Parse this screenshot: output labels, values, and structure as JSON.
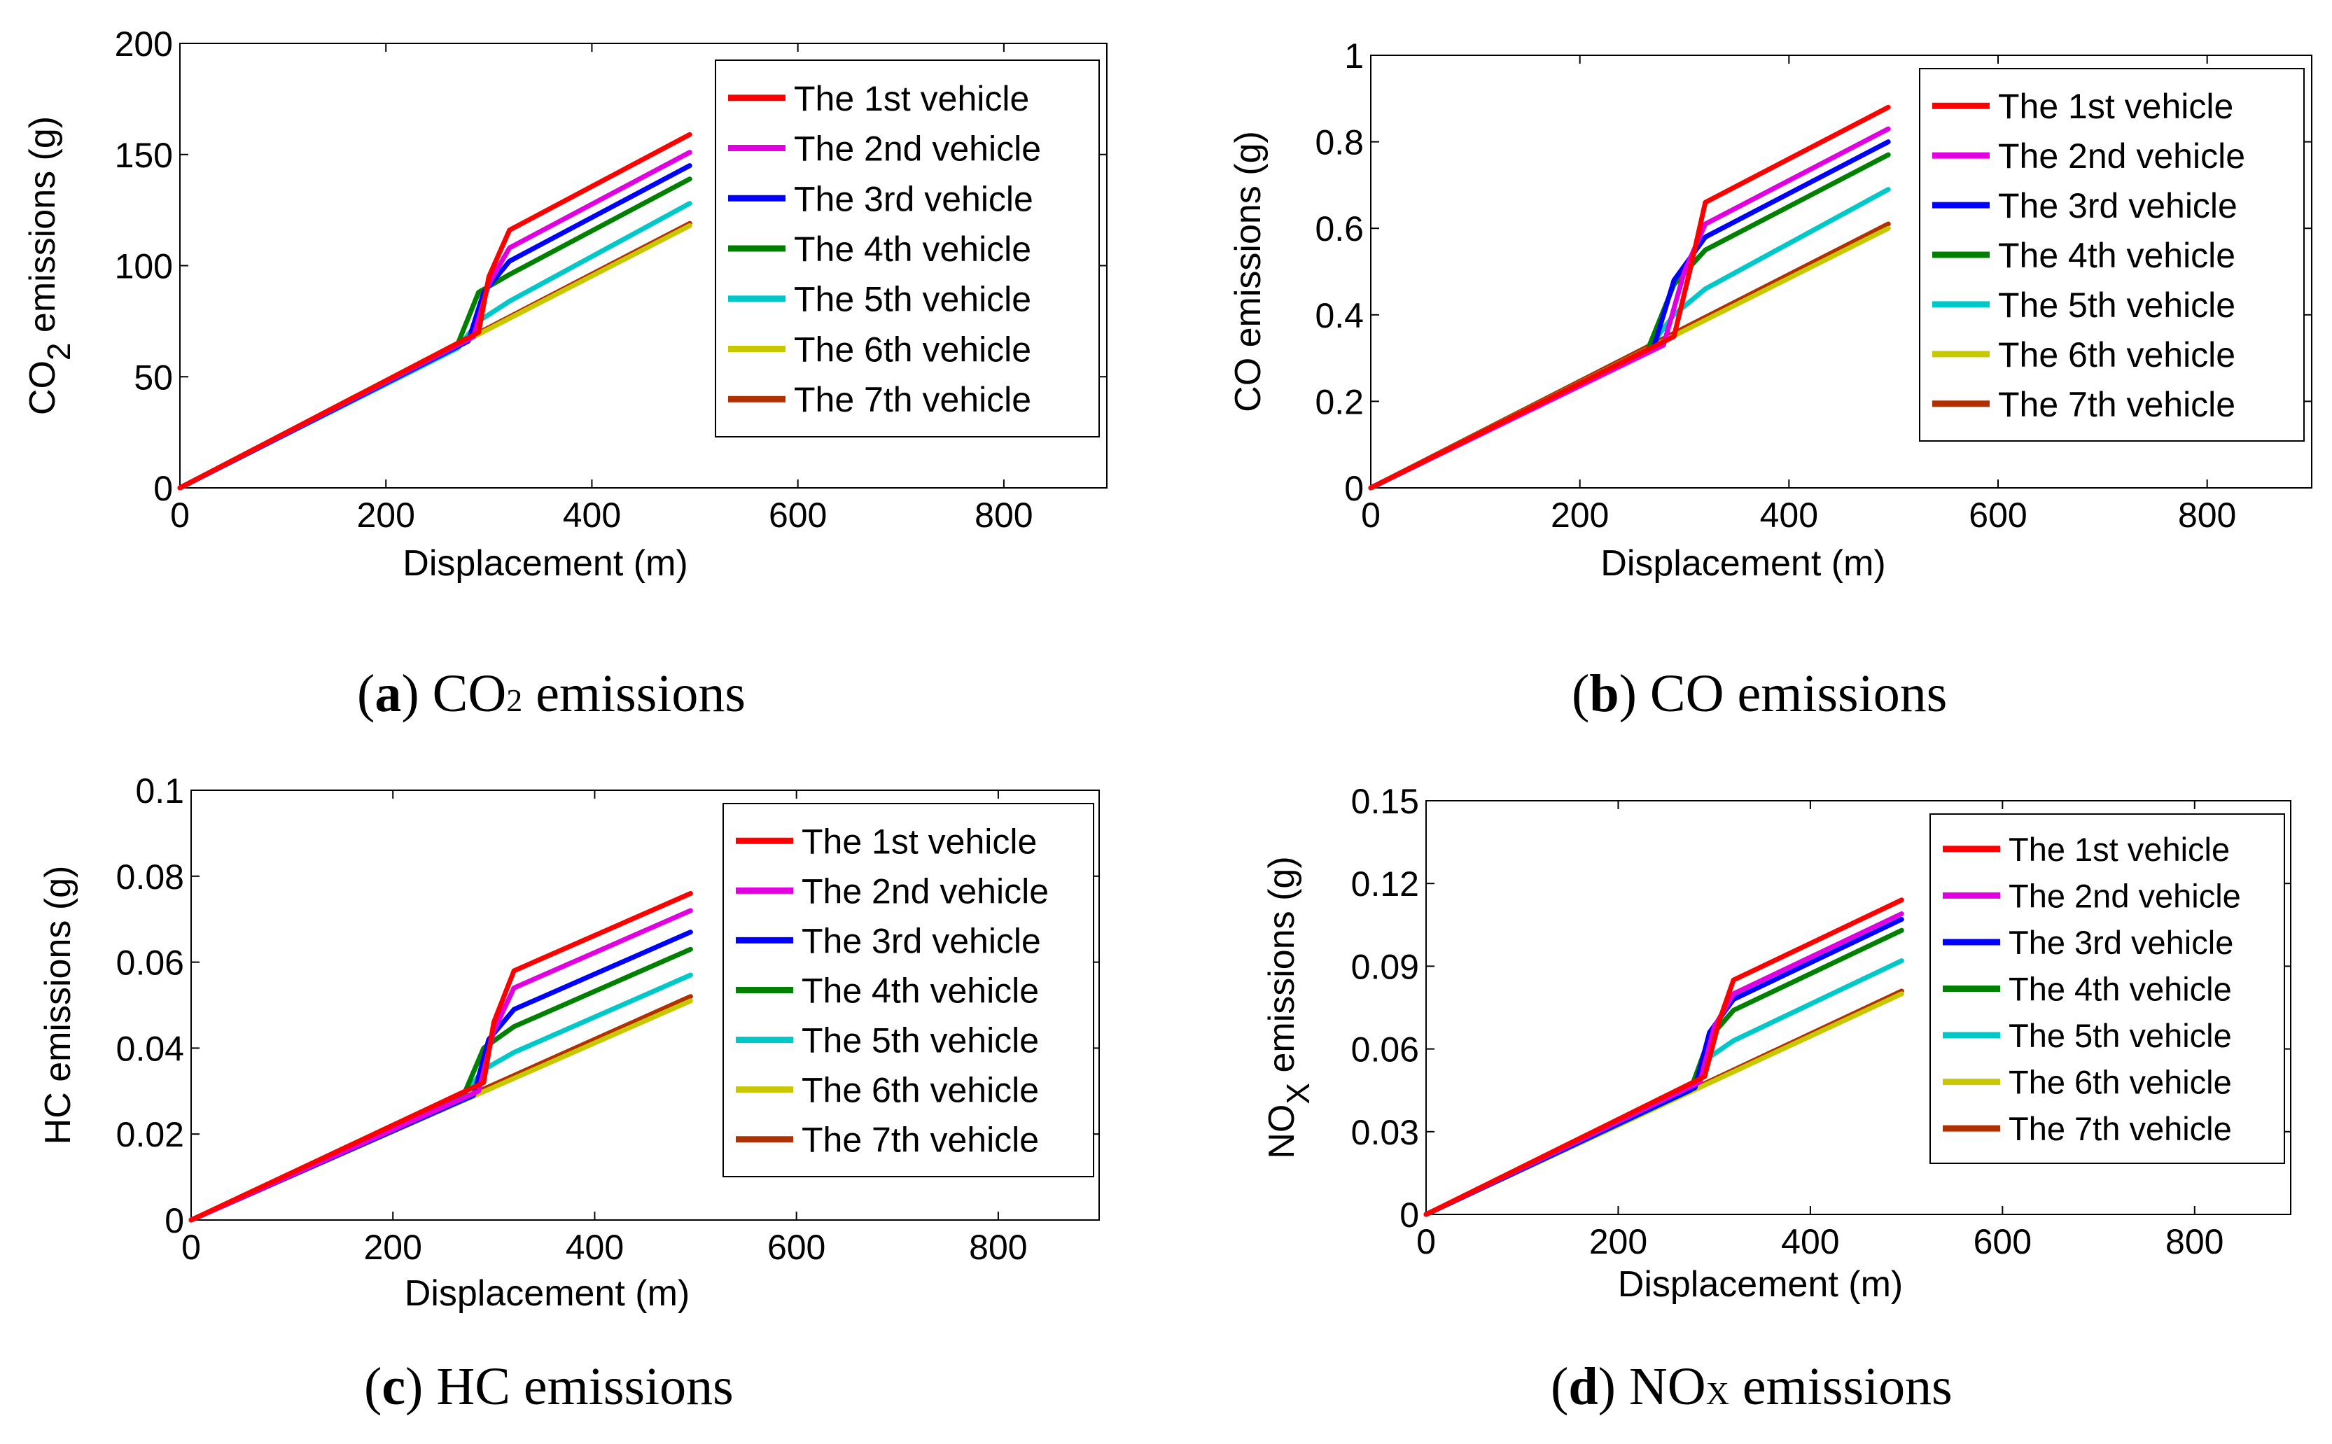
{
  "figure": {
    "captions": [
      {
        "letter": "a",
        "text_main": "CO",
        "text_sub": "2",
        "text_after": " emissions"
      },
      {
        "letter": "b",
        "text_main": "CO emissions",
        "text_sub": "",
        "text_after": ""
      },
      {
        "letter": "c",
        "text_main": "HC emissions",
        "text_sub": "",
        "text_after": ""
      },
      {
        "letter": "d",
        "text_main": "NO",
        "text_sub": "X",
        "text_after": " emissions"
      }
    ]
  },
  "legend_entries": [
    "The 1st vehicle",
    "The 2nd vehicle",
    "The 3rd vehicle",
    "The 4th vehicle",
    "The 5th vehicle",
    "The 6th vehicle",
    "The 7th vehicle"
  ],
  "series_colors": [
    "#ff0000",
    "#e000e0",
    "#0000ff",
    "#008000",
    "#00c8c8",
    "#c8c800",
    "#b03000"
  ],
  "chart_data": [
    {
      "type": "line",
      "title": "",
      "xlabel": "Displacement (m)",
      "ylabel_main": "CO",
      "ylabel_sub": "2",
      "ylabel_after": " emissions (g)",
      "xlim": [
        0,
        900
      ],
      "ylim": [
        0,
        200
      ],
      "xticks": [
        "0",
        "200",
        "400",
        "600",
        "800"
      ],
      "xtick_values": [
        0,
        200,
        400,
        600,
        800
      ],
      "yticks": [
        "0",
        "50",
        "100",
        "150",
        "200"
      ],
      "ytick_values": [
        0,
        50,
        100,
        150,
        200
      ],
      "legend_position": "top-right",
      "series": [
        {
          "name": "The 1st vehicle",
          "points": [
            [
              0,
              0
            ],
            [
              290,
              70
            ],
            [
              300,
              95
            ],
            [
              320,
              116
            ],
            [
              495,
              159
            ]
          ]
        },
        {
          "name": "The 2nd vehicle",
          "points": [
            [
              0,
              0
            ],
            [
              285,
              68
            ],
            [
              300,
              92
            ],
            [
              320,
              108
            ],
            [
              495,
              151
            ]
          ]
        },
        {
          "name": "The 3rd vehicle",
          "points": [
            [
              0,
              0
            ],
            [
              280,
              66
            ],
            [
              295,
              88
            ],
            [
              320,
              102
            ],
            [
              495,
              145
            ]
          ]
        },
        {
          "name": "The 4th vehicle",
          "points": [
            [
              0,
              0
            ],
            [
              270,
              65
            ],
            [
              290,
              88
            ],
            [
              320,
              96
            ],
            [
              495,
              139
            ]
          ]
        },
        {
          "name": "The 5th vehicle",
          "points": [
            [
              0,
              0
            ],
            [
              270,
              63
            ],
            [
              290,
              75
            ],
            [
              320,
              84
            ],
            [
              495,
              128
            ]
          ]
        },
        {
          "name": "The 6th vehicle",
          "points": [
            [
              0,
              0
            ],
            [
              495,
              118
            ]
          ]
        },
        {
          "name": "The 7th vehicle",
          "points": [
            [
              0,
              0
            ],
            [
              495,
              119
            ]
          ]
        }
      ]
    },
    {
      "type": "line",
      "title": "",
      "xlabel": "Displacement (m)",
      "ylabel_main": "CO emissions (g)",
      "ylabel_sub": "",
      "ylabel_after": "",
      "xlim": [
        0,
        900
      ],
      "ylim": [
        0,
        1
      ],
      "xticks": [
        "0",
        "200",
        "400",
        "600",
        "800"
      ],
      "xtick_values": [
        0,
        200,
        400,
        600,
        800
      ],
      "yticks": [
        "0",
        "0.2",
        "0.4",
        "0.6",
        "0.8",
        "1"
      ],
      "ytick_values": [
        0,
        0.2,
        0.4,
        0.6,
        0.8,
        1
      ],
      "legend_position": "top-right",
      "series": [
        {
          "name": "The 1st vehicle",
          "points": [
            [
              0,
              0
            ],
            [
              290,
              0.35
            ],
            [
              305,
              0.5
            ],
            [
              320,
              0.66
            ],
            [
              495,
              0.88
            ]
          ]
        },
        {
          "name": "The 2nd vehicle",
          "points": [
            [
              0,
              0
            ],
            [
              280,
              0.33
            ],
            [
              300,
              0.5
            ],
            [
              320,
              0.61
            ],
            [
              495,
              0.83
            ]
          ]
        },
        {
          "name": "The 3rd vehicle",
          "points": [
            [
              0,
              0
            ],
            [
              270,
              0.32
            ],
            [
              290,
              0.48
            ],
            [
              320,
              0.58
            ],
            [
              495,
              0.8
            ]
          ]
        },
        {
          "name": "The 4th vehicle",
          "points": [
            [
              0,
              0
            ],
            [
              265,
              0.32
            ],
            [
              290,
              0.47
            ],
            [
              320,
              0.55
            ],
            [
              495,
              0.77
            ]
          ]
        },
        {
          "name": "The 5th vehicle",
          "points": [
            [
              0,
              0
            ],
            [
              265,
              0.32
            ],
            [
              290,
              0.4
            ],
            [
              320,
              0.46
            ],
            [
              495,
              0.69
            ]
          ]
        },
        {
          "name": "The 6th vehicle",
          "points": [
            [
              0,
              0
            ],
            [
              495,
              0.6
            ]
          ]
        },
        {
          "name": "The 7th vehicle",
          "points": [
            [
              0,
              0
            ],
            [
              495,
              0.61
            ]
          ]
        }
      ]
    },
    {
      "type": "line",
      "title": "",
      "xlabel": "Displacement (m)",
      "ylabel_main": "HC emissions (g)",
      "ylabel_sub": "",
      "ylabel_after": "",
      "xlim": [
        0,
        900
      ],
      "ylim": [
        0,
        0.1
      ],
      "xticks": [
        "0",
        "200",
        "400",
        "600",
        "800"
      ],
      "xtick_values": [
        0,
        200,
        400,
        600,
        800
      ],
      "yticks": [
        "0",
        "0.02",
        "0.04",
        "0.06",
        "0.08",
        "0.1"
      ],
      "ytick_values": [
        0,
        0.02,
        0.04,
        0.06,
        0.08,
        0.1
      ],
      "legend_position": "top-right",
      "series": [
        {
          "name": "The 1st vehicle",
          "points": [
            [
              0,
              0
            ],
            [
              290,
              0.032
            ],
            [
              300,
              0.046
            ],
            [
              320,
              0.058
            ],
            [
              495,
              0.076
            ]
          ]
        },
        {
          "name": "The 2nd vehicle",
          "points": [
            [
              0,
              0
            ],
            [
              285,
              0.03
            ],
            [
              300,
              0.044
            ],
            [
              320,
              0.054
            ],
            [
              495,
              0.072
            ]
          ]
        },
        {
          "name": "The 3rd vehicle",
          "points": [
            [
              0,
              0
            ],
            [
              280,
              0.029
            ],
            [
              295,
              0.042
            ],
            [
              320,
              0.049
            ],
            [
              495,
              0.067
            ]
          ]
        },
        {
          "name": "The 4th vehicle",
          "points": [
            [
              0,
              0
            ],
            [
              270,
              0.029
            ],
            [
              290,
              0.04
            ],
            [
              320,
              0.045
            ],
            [
              495,
              0.063
            ]
          ]
        },
        {
          "name": "The 5th vehicle",
          "points": [
            [
              0,
              0
            ],
            [
              270,
              0.029
            ],
            [
              290,
              0.035
            ],
            [
              320,
              0.039
            ],
            [
              495,
              0.057
            ]
          ]
        },
        {
          "name": "The 6th vehicle",
          "points": [
            [
              0,
              0
            ],
            [
              495,
              0.051
            ]
          ]
        },
        {
          "name": "The 7th vehicle",
          "points": [
            [
              0,
              0
            ],
            [
              495,
              0.052
            ]
          ]
        }
      ]
    },
    {
      "type": "line",
      "title": "",
      "xlabel": "Displacement (m)",
      "ylabel_main": "NO",
      "ylabel_sub": "X",
      "ylabel_after": " emissions (g)",
      "xlim": [
        0,
        900
      ],
      "ylim": [
        0,
        0.15
      ],
      "xticks": [
        "0",
        "200",
        "400",
        "600",
        "800"
      ],
      "xtick_values": [
        0,
        200,
        400,
        600,
        800
      ],
      "yticks": [
        "0",
        "0.03",
        "0.06",
        "0.09",
        "0.12",
        "0.15"
      ],
      "ytick_values": [
        0,
        0.03,
        0.06,
        0.09,
        0.12,
        0.15
      ],
      "legend_position": "top-right",
      "series": [
        {
          "name": "The 1st vehicle",
          "points": [
            [
              0,
              0
            ],
            [
              290,
              0.05
            ],
            [
              305,
              0.07
            ],
            [
              320,
              0.085
            ],
            [
              495,
              0.114
            ]
          ]
        },
        {
          "name": "The 2nd vehicle",
          "points": [
            [
              0,
              0
            ],
            [
              285,
              0.048
            ],
            [
              300,
              0.068
            ],
            [
              320,
              0.08
            ],
            [
              495,
              0.109
            ]
          ]
        },
        {
          "name": "The 3rd vehicle",
          "points": [
            [
              0,
              0
            ],
            [
              280,
              0.046
            ],
            [
              295,
              0.066
            ],
            [
              320,
              0.078
            ],
            [
              495,
              0.107
            ]
          ]
        },
        {
          "name": "The 4th vehicle",
          "points": [
            [
              0,
              0
            ],
            [
              275,
              0.045
            ],
            [
              295,
              0.064
            ],
            [
              320,
              0.074
            ],
            [
              495,
              0.103
            ]
          ]
        },
        {
          "name": "The 5th vehicle",
          "points": [
            [
              0,
              0
            ],
            [
              275,
              0.045
            ],
            [
              295,
              0.057
            ],
            [
              320,
              0.063
            ],
            [
              495,
              0.092
            ]
          ]
        },
        {
          "name": "The 6th vehicle",
          "points": [
            [
              0,
              0
            ],
            [
              495,
              0.08
            ]
          ]
        },
        {
          "name": "The 7th vehicle",
          "points": [
            [
              0,
              0
            ],
            [
              495,
              0.081
            ]
          ]
        }
      ]
    }
  ]
}
